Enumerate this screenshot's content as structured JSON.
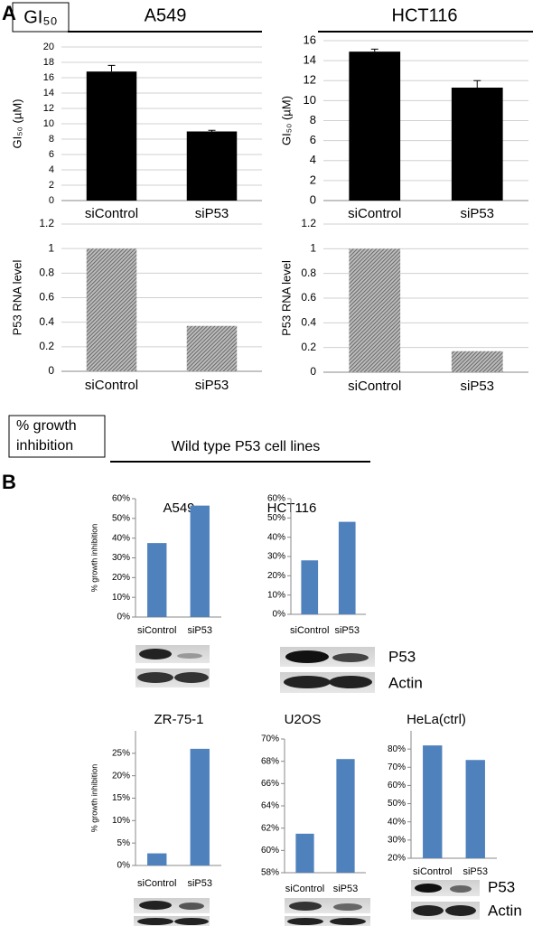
{
  "labels": {
    "panel_a": "A",
    "panel_b": "B",
    "gi50_box": "GI₅₀",
    "growth_box": [
      "% growth",
      "inhibition"
    ],
    "wild_type": "Wild type P53 cell lines",
    "blot_labels_top": [
      "P53",
      "Actin"
    ],
    "blot_labels_bottom": [
      "P53",
      "Actin"
    ]
  },
  "chart_data": [
    {
      "type": "bar",
      "title": "A549",
      "y_label": "GI₅₀ (µM)",
      "categories": [
        "siControl",
        "siP53"
      ],
      "values": [
        16.8,
        9.0
      ],
      "errors": [
        0.8,
        0.15
      ],
      "color": "#000000",
      "ylim": [
        0,
        20
      ],
      "yticks": [
        0,
        2,
        4,
        6,
        8,
        10,
        12,
        14,
        16,
        18,
        20
      ],
      "grid": true
    },
    {
      "type": "bar",
      "title": "HCT116",
      "y_label": "GI₅₀ (µM)",
      "categories": [
        "siControl",
        "siP53"
      ],
      "values": [
        14.9,
        11.3
      ],
      "errors": [
        0.25,
        0.7
      ],
      "color": "#000000",
      "ylim": [
        0,
        16
      ],
      "yticks": [
        0,
        2,
        4,
        6,
        8,
        10,
        12,
        14,
        16
      ],
      "grid": true
    },
    {
      "type": "bar",
      "y_label": "P53 RNA level",
      "categories": [
        "siControl",
        "siP53"
      ],
      "values": [
        1,
        0.37
      ],
      "color": "#555555",
      "fill_pattern": "hatched",
      "ylim": [
        0,
        1.2
      ],
      "yticks": [
        0,
        0.2,
        0.4,
        0.6,
        0.8,
        1,
        1.2
      ],
      "grid": true
    },
    {
      "type": "bar",
      "y_label": "P53 RNA level",
      "categories": [
        "siControl",
        "siP53"
      ],
      "values": [
        1,
        0.17
      ],
      "color": "#555555",
      "fill_pattern": "hatched",
      "ylim": [
        0,
        1.2
      ],
      "yticks": [
        0,
        0.2,
        0.4,
        0.6,
        0.8,
        1,
        1.2
      ],
      "grid": true
    },
    {
      "type": "bar",
      "title": "A549",
      "y_label": "% growth inhibition",
      "categories": [
        "siControl",
        "siP53"
      ],
      "values": [
        37.5,
        56.5
      ],
      "color": "#4f81bd",
      "ylim": [
        0,
        60
      ],
      "yticks": [
        {
          "value": 0,
          "label": "0%"
        },
        {
          "value": 10,
          "label": "10%"
        },
        {
          "value": 20,
          "label": "20%"
        },
        {
          "value": 30,
          "label": "30%"
        },
        {
          "value": 40,
          "label": "40%"
        },
        {
          "value": 50,
          "label": "50%"
        },
        {
          "value": 60,
          "label": "60%"
        }
      ],
      "grid": false
    },
    {
      "type": "bar",
      "title": "HCT116",
      "categories": [
        "siControl",
        "siP53"
      ],
      "values": [
        28,
        48
      ],
      "color": "#4f81bd",
      "ylim": [
        0,
        60
      ],
      "yticks": [
        {
          "value": 0,
          "label": "0%"
        },
        {
          "value": 10,
          "label": "10%"
        },
        {
          "value": 20,
          "label": "20%"
        },
        {
          "value": 30,
          "label": "30%"
        },
        {
          "value": 40,
          "label": "40%"
        },
        {
          "value": 50,
          "label": "50%"
        },
        {
          "value": 60,
          "label": "60%"
        }
      ],
      "grid": false
    },
    {
      "type": "bar",
      "title": "ZR-75-1",
      "y_label": "% growth inhibition",
      "categories": [
        "siControl",
        "siP53"
      ],
      "values": [
        2.7,
        26
      ],
      "color": "#4f81bd",
      "ylim": [
        0,
        30
      ],
      "yticks": [
        {
          "value": 0,
          "label": "0%"
        },
        {
          "value": 5,
          "label": "5%"
        },
        {
          "value": 10,
          "label": "10%"
        },
        {
          "value": 15,
          "label": "15%"
        },
        {
          "value": 20,
          "label": "20%"
        },
        {
          "value": 25,
          "label": "25%"
        }
      ],
      "grid": false
    },
    {
      "type": "bar",
      "title": "U2OS",
      "categories": [
        "siControl",
        "siP53"
      ],
      "values": [
        61.5,
        68.2
      ],
      "color": "#4f81bd",
      "ylim": [
        58,
        70
      ],
      "yticks": [
        {
          "value": 58,
          "label": "58%"
        },
        {
          "value": 60,
          "label": "60%"
        },
        {
          "value": 62,
          "label": "62%"
        },
        {
          "value": 64,
          "label": "64%"
        },
        {
          "value": 66,
          "label": "66%"
        },
        {
          "value": 68,
          "label": "68%"
        },
        {
          "value": 70,
          "label": "70%"
        }
      ],
      "grid": false
    },
    {
      "type": "bar",
      "title": "HeLa(ctrl)",
      "categories": [
        "siControl",
        "siP53"
      ],
      "values": [
        82,
        74
      ],
      "color": "#4f81bd",
      "ylim": [
        20,
        90
      ],
      "yticks": [
        {
          "value": 20,
          "label": "20%"
        },
        {
          "value": 30,
          "label": "30%"
        },
        {
          "value": 40,
          "label": "40%"
        },
        {
          "value": 50,
          "label": "50%"
        },
        {
          "value": 60,
          "label": "60%"
        },
        {
          "value": 70,
          "label": "70%"
        },
        {
          "value": 80,
          "label": "80%"
        }
      ],
      "grid": false
    }
  ]
}
